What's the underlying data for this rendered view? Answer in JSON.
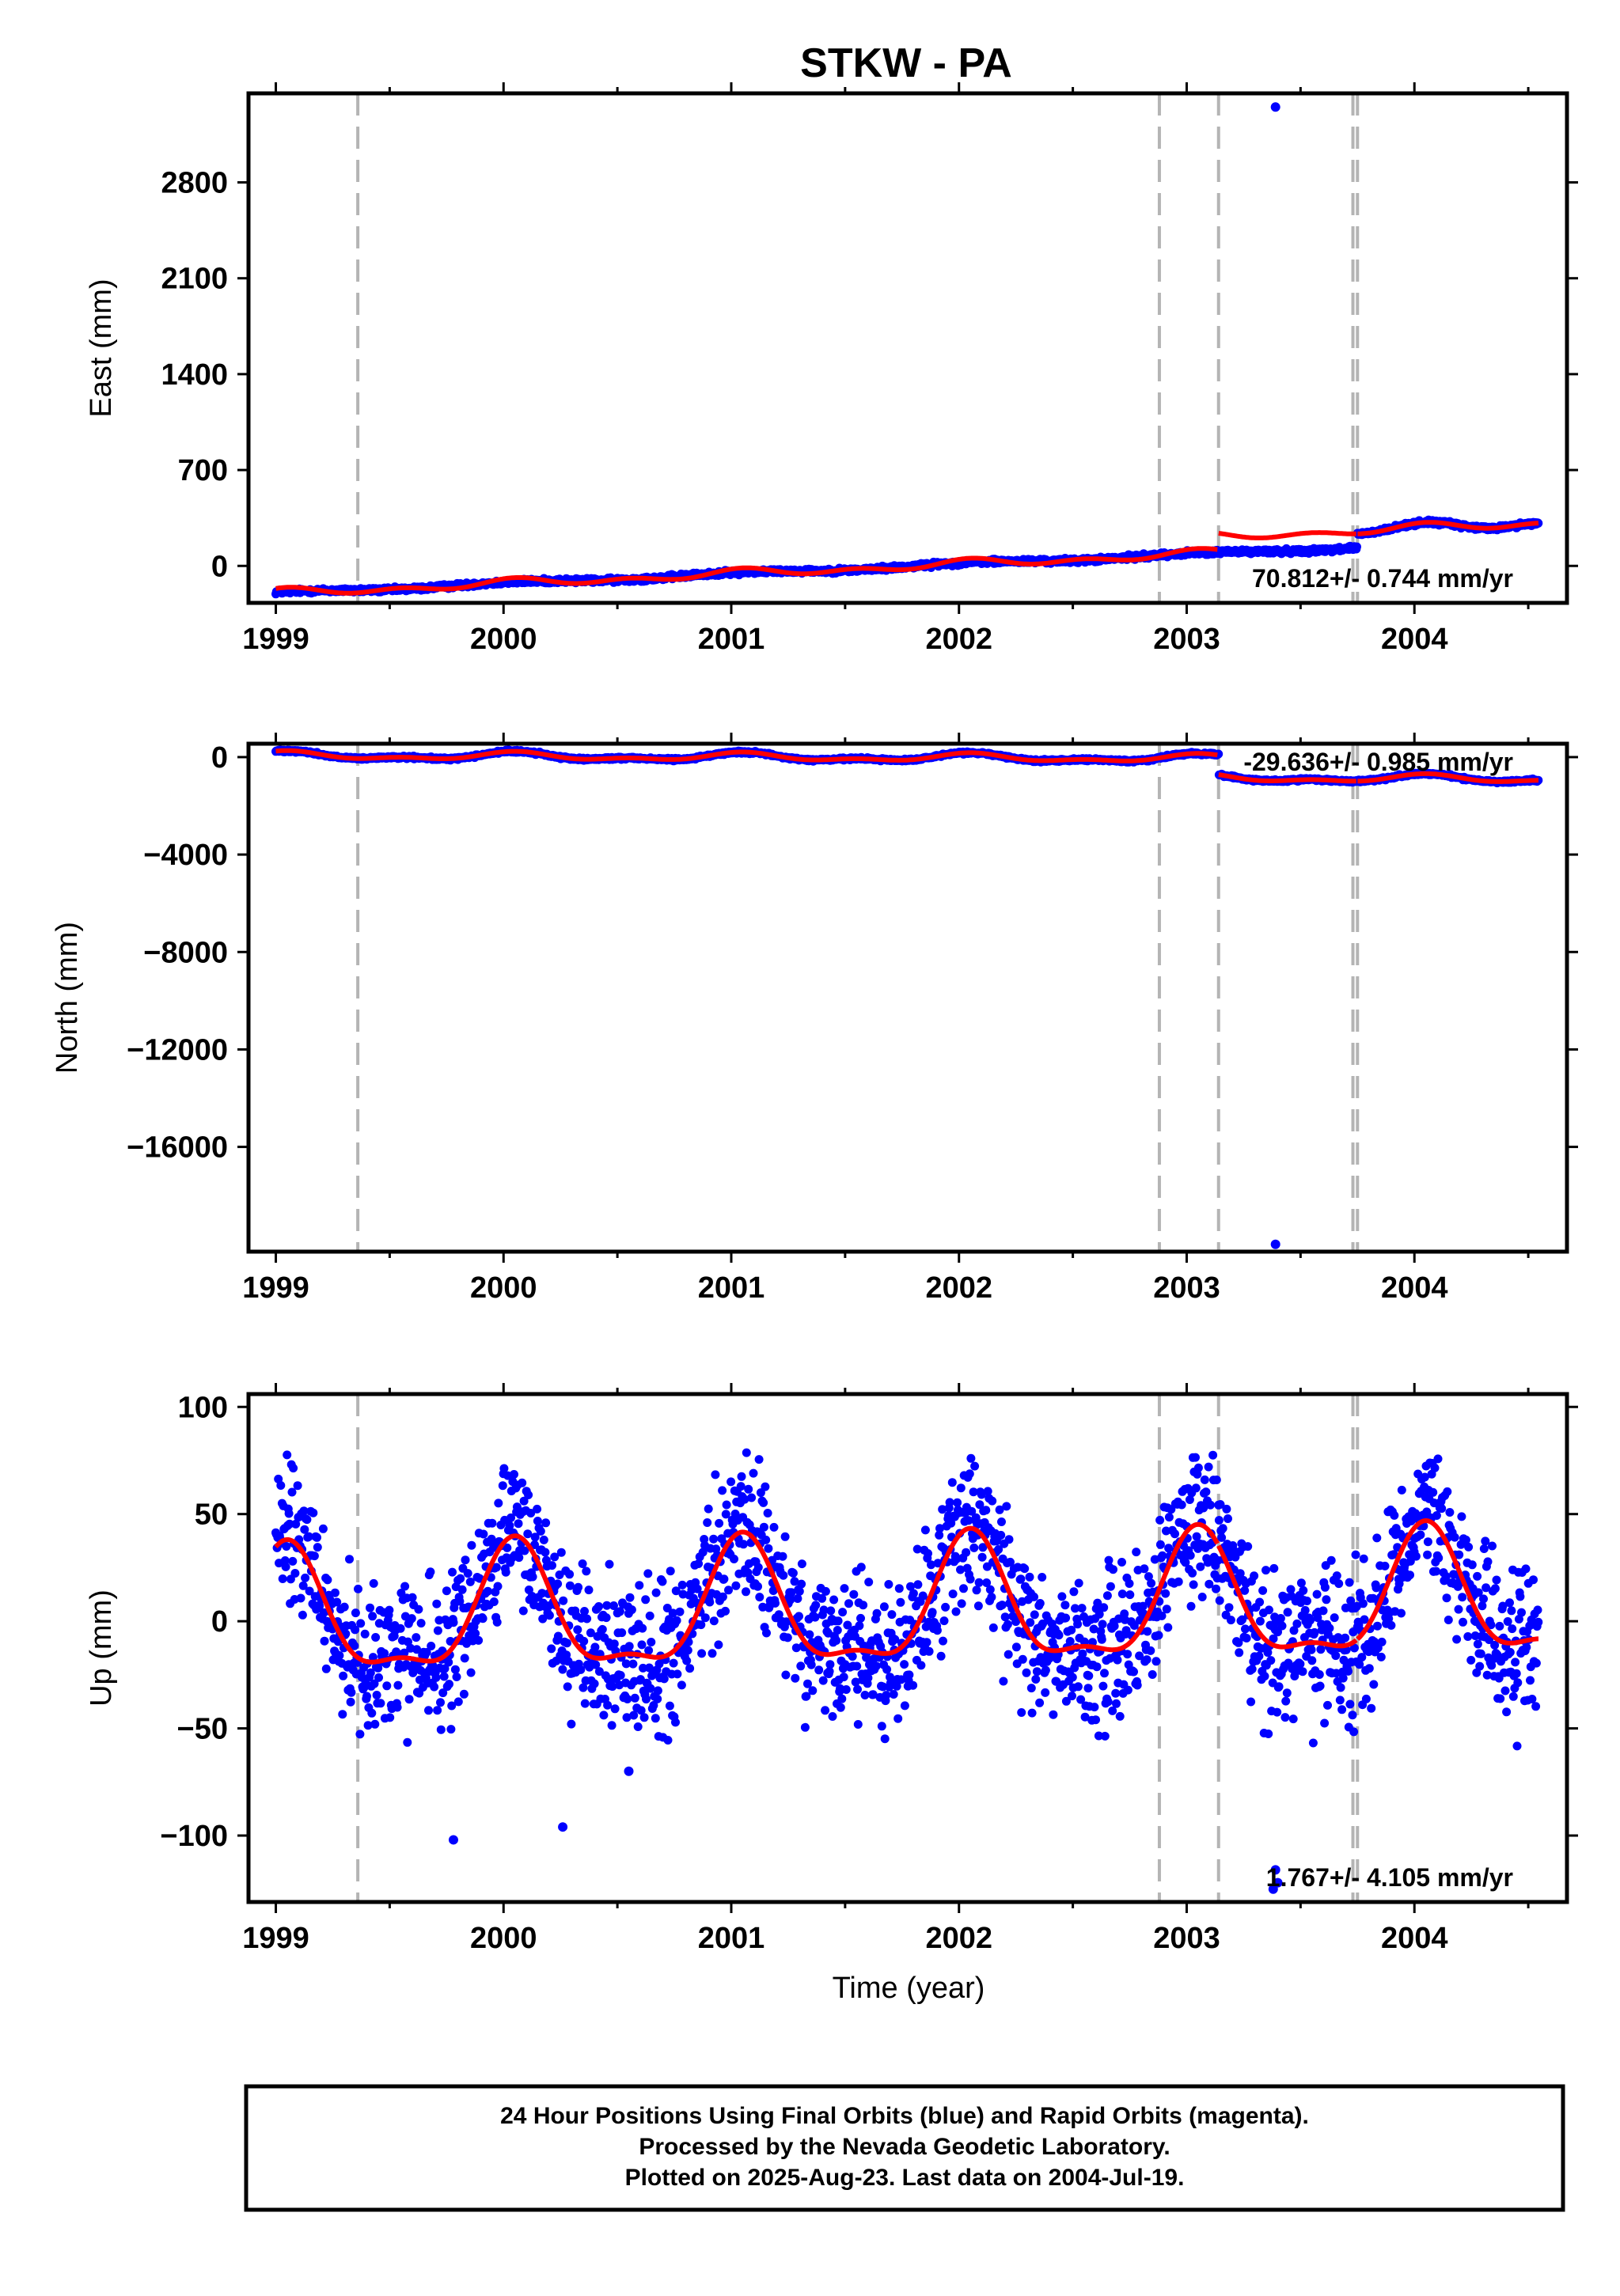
{
  "title": "STKW - PA",
  "xlabel": "Time (year)",
  "footer": {
    "line1": "24 Hour Positions Using Final Orbits (blue) and Rapid Orbits (magenta).",
    "line2": "Processed by the Nevada Geodetic Laboratory.",
    "line3": "Plotted on 2025-Aug-23. Last data on 2004-Jul-19."
  },
  "colors": {
    "data": "#0000ff",
    "model": "#ff0000",
    "offset": "#b4b4b4",
    "frame": "#000000"
  },
  "chart_data": [
    {
      "type": "scatter",
      "ylabel": "East (mm)",
      "rate_label": "70.812+/- 0.744 mm/yr",
      "xlim": [
        1998.88,
        2004.67
      ],
      "ylim": [
        -270,
        3450
      ],
      "x_ticks": [
        "1999",
        "2000",
        "2001",
        "2002",
        "2003",
        "2004"
      ],
      "y_ticks": [
        0,
        700,
        1400,
        2100,
        2800
      ],
      "offsets_year": [
        1999.36,
        2002.88,
        2003.14,
        2003.73,
        2003.75
      ],
      "trend": {
        "rate_mm_yr": 70.812,
        "intercept_1999": -200,
        "step_2003_14": 120,
        "step_2003_75": 0
      },
      "seasonal": {
        "annual_amp": 20,
        "semiannual_amp": 20
      },
      "noise_mm": 8,
      "outliers": [
        {
          "x": 2003.39,
          "y": 3350
        }
      ]
    },
    {
      "type": "scatter",
      "ylabel": "North (mm)",
      "rate_label": "-29.636+/- 0.985 mm/yr",
      "xlim": [
        1998.88,
        2004.67
      ],
      "ylim": [
        -20300,
        550
      ],
      "x_ticks": [
        "1999",
        "2000",
        "2001",
        "2002",
        "2003",
        "2004"
      ],
      "y_ticks": [
        0,
        -4000,
        -8000,
        -12000,
        -16000
      ],
      "offsets_year": [
        1999.36,
        2002.88,
        2003.14,
        2003.73,
        2003.75
      ],
      "trend": {
        "rate_mm_yr": -29.636,
        "intercept_1999": 60,
        "step_2003_14": -800,
        "step_2003_75": 0
      },
      "seasonal": {
        "annual_amp": 130,
        "semiannual_amp": 80
      },
      "noise_mm": 25,
      "outliers": [
        {
          "x": 2003.39,
          "y": -20000
        }
      ]
    },
    {
      "type": "scatter",
      "ylabel": "Up (mm)",
      "rate_label": "1.767+/- 4.105 mm/yr",
      "xlim": [
        1998.88,
        2004.67
      ],
      "ylim": [
        -131,
        106
      ],
      "x_ticks": [
        "1999",
        "2000",
        "2001",
        "2002",
        "2003",
        "2004"
      ],
      "y_ticks": [
        100,
        50,
        0,
        -50,
        -100
      ],
      "offsets_year": [
        1999.36,
        2002.88,
        2003.14,
        2003.73,
        2003.75
      ],
      "trend": {
        "rate_mm_yr": 1.767,
        "intercept_1999": 0,
        "step_2003_14": 0,
        "step_2003_75": 0
      },
      "seasonal": {
        "annual_amp": 28,
        "semiannual_amp": 10
      },
      "noise_mm": 17,
      "outliers": [
        {
          "x": 1999.78,
          "y": -102
        },
        {
          "x": 2000.26,
          "y": -96
        },
        {
          "x": 2000.55,
          "y": -70
        },
        {
          "x": 2003.39,
          "y": -116
        },
        {
          "x": 2003.4,
          "y": -122
        },
        {
          "x": 2003.38,
          "y": -125
        }
      ]
    }
  ]
}
